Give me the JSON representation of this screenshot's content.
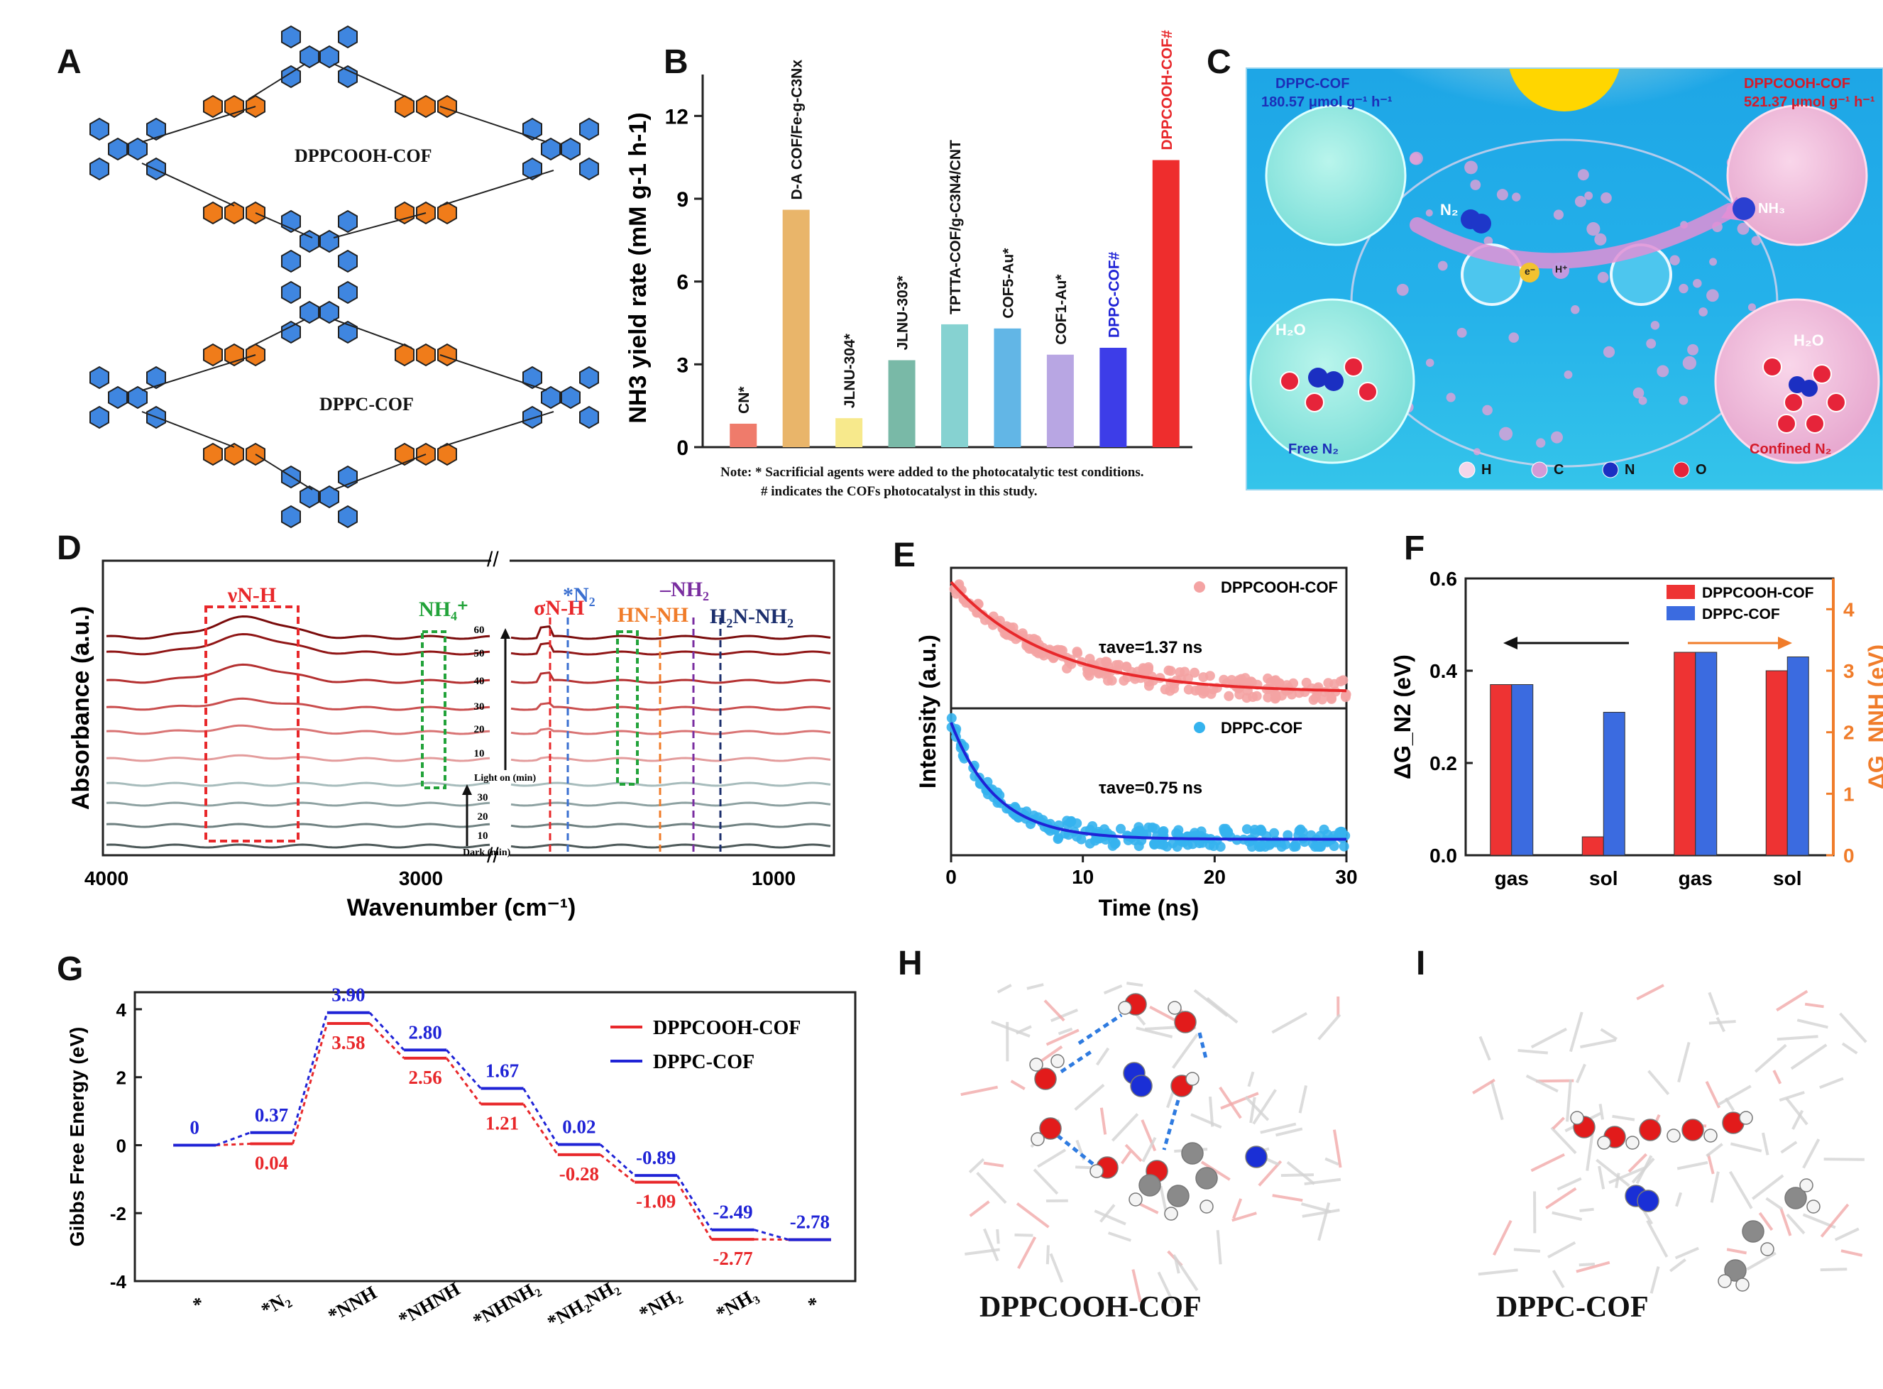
{
  "panels": {
    "a": {
      "label": "A",
      "cof_top": "DPPCOOH-COF",
      "cof_bottom": "DPPC-COF"
    },
    "b": {
      "label": "B",
      "note_line1": "Note: * Sacrificial agents were added to the photocatalytic test conditions.",
      "note_line2": "# indicates the COFs photocatalyst in this study."
    },
    "c": {
      "label": "C",
      "left_title": "DPPC-COF",
      "left_rate": "180.57 μmol g⁻¹ h⁻¹",
      "right_title": "DPPCOOH-COF",
      "right_rate": "521.37 μmol g⁻¹ h⁻¹",
      "free_n2": "Free N₂",
      "confined_n2": "Confined N₂",
      "n2": "N₂",
      "h2o": "H₂O",
      "nh3": "NH₃",
      "eminus": "e⁻",
      "hplus": "H⁺",
      "legend": [
        "H",
        "C",
        "N",
        "O"
      ]
    },
    "d": {
      "label": "D"
    },
    "e": {
      "label": "E"
    },
    "f": {
      "label": "F"
    },
    "g": {
      "label": "G"
    },
    "h": {
      "label": "H",
      "caption": "DPPCOOH-COF"
    },
    "i": {
      "label": "I",
      "caption": "DPPC-COF"
    }
  },
  "colors": {
    "red": "#e8282b",
    "blue": "#1f23d6",
    "orange": "#f07c2a"
  },
  "chart_data": [
    {
      "id": "B",
      "type": "bar",
      "ylabel": "NH3 yield rate (mM g-1 h-1)",
      "ylim": [
        0,
        13.5
      ],
      "yticks": [
        0,
        3,
        6,
        9,
        12
      ],
      "categories": [
        "CN*",
        "D-A COF/Fe-g-C3Nx",
        "JLNU-304*",
        "JLNU-303*",
        "TPTTA-COF/g-C3N4/CNT",
        "COF5-Au*",
        "COF1-Au*",
        "DPPC-COF#",
        "DPPCOOH-COF#"
      ],
      "values": [
        0.85,
        8.6,
        1.05,
        3.15,
        4.45,
        4.3,
        3.35,
        3.6,
        10.4
      ],
      "bar_colors": [
        "#ef7b6b",
        "#e9b56a",
        "#f7e98c",
        "#79b9a7",
        "#86d2d1",
        "#62b6e6",
        "#b8a6e3",
        "#3d3de8",
        "#ee2d2d"
      ],
      "label_colors": [
        "#111111",
        "#111111",
        "#111111",
        "#111111",
        "#111111",
        "#111111",
        "#111111",
        "#1f23d6",
        "#e8282b"
      ]
    },
    {
      "id": "D",
      "type": "line",
      "ylabel": "Absorbance (a.u.)",
      "xlabel": "Wavenumber (cm⁻¹)",
      "xticks": [
        "4000",
        "3000",
        "1000"
      ],
      "band_labels": [
        "νN-H",
        "NH₄⁺",
        "σN-H",
        "*N₂",
        "HN-NH",
        "–NH₂",
        "H₂N-NH₂"
      ],
      "band_colors": [
        "#e8282b",
        "#22a33a",
        "#e8282b",
        "#3a6fd0",
        "#f07c2a",
        "#7a2ea0",
        "#1c2f6e"
      ],
      "light_times": [
        "60",
        "50",
        "40",
        "30",
        "20",
        "10"
      ],
      "dark_times": [
        "30",
        "20",
        "10"
      ],
      "light_text": "Light on (min)",
      "dark_text": "Dark (min)"
    },
    {
      "id": "E",
      "type": "scatter",
      "ylabel": "Intensity (a.u.)",
      "xlabel": "Time (ns)",
      "xlim": [
        0,
        30
      ],
      "xticks": [
        "0",
        "10",
        "20",
        "30"
      ],
      "series": [
        {
          "name": "DPPCOOH-COF",
          "tau": "τave=1.37 ns",
          "color": "#e8282b",
          "marker": "#f4a3a3",
          "decay_ns": 7.5,
          "floor": 0.06
        },
        {
          "name": "DPPC-COF",
          "tau": "τave=0.75 ns",
          "color": "#1f23d6",
          "marker": "#35b3ee",
          "decay_ns": 3.4,
          "floor": 0.06
        }
      ]
    },
    {
      "id": "F",
      "type": "bar",
      "ylabel_left": "ΔG_N2 (eV)",
      "ylabel_right": "ΔG_NNH (eV)",
      "ylim_left": [
        0,
        0.6
      ],
      "ylim_right": [
        0,
        4.5
      ],
      "yticks_left": [
        "0.0",
        "0.2",
        "0.4",
        "0.6"
      ],
      "yticks_right": [
        "0",
        "1",
        "2",
        "3",
        "4"
      ],
      "categories": [
        "gas",
        "sol",
        "gas",
        "sol"
      ],
      "series": [
        {
          "name": "DPPCOOH-COF",
          "values": [
            0.37,
            0.04,
            0.44,
            0.4
          ],
          "color": "#ee3333"
        },
        {
          "name": "DPPC-COF",
          "values": [
            0.37,
            0.31,
            0.44,
            0.43
          ],
          "color": "#3b6be0"
        }
      ]
    },
    {
      "id": "G",
      "type": "line",
      "ylabel": "Gibbs Free Energy (eV)",
      "ylim": [
        -4,
        4.5
      ],
      "yticks": [
        "4",
        "2",
        "0",
        "-2",
        "-4"
      ],
      "categories": [
        "*",
        "*N₂",
        "*NNH",
        "*NHNH",
        "*NHNH₂",
        "*NH₂NH₂",
        "*NH₂",
        "*NH₃",
        "*"
      ],
      "series": [
        {
          "name": "DPPCOOH-COF",
          "color": "#e8282b",
          "values": [
            0,
            0.04,
            3.58,
            2.56,
            1.21,
            -0.28,
            -1.09,
            -2.77,
            -2.78
          ],
          "labels": [
            "",
            "0.04",
            "3.58",
            "2.56",
            "1.21",
            "-0.28",
            "-1.09",
            "-2.77",
            ""
          ]
        },
        {
          "name": "DPPC-COF",
          "color": "#1f23d6",
          "values": [
            0,
            0.37,
            3.9,
            2.8,
            1.67,
            0.02,
            -0.89,
            -2.49,
            -2.78
          ],
          "labels": [
            "0",
            "0.37",
            "3.90",
            "2.80",
            "1.67",
            "0.02",
            "-0.89",
            "-2.49",
            "-2.78"
          ]
        }
      ]
    }
  ]
}
